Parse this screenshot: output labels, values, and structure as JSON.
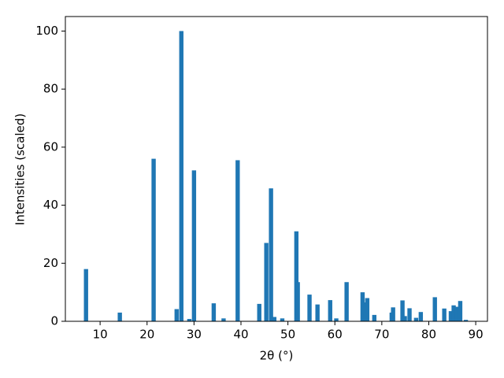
{
  "chart_data": {
    "type": "bar",
    "xlabel": "2θ (°)",
    "ylabel": "Intensities (scaled)",
    "x": [
      7.0,
      14.2,
      21.4,
      26.3,
      27.3,
      29.0,
      30.0,
      34.2,
      36.3,
      39.3,
      43.9,
      45.4,
      46.4,
      47.1,
      48.8,
      51.8,
      52.1,
      54.6,
      56.3,
      59.0,
      60.3,
      62.5,
      65.9,
      66.5,
      66.9,
      68.4,
      72.1,
      72.4,
      74.4,
      74.9,
      75.9,
      77.3,
      78.3,
      81.3,
      83.3,
      84.7,
      85.3,
      86.0,
      86.7,
      87.9
    ],
    "values": [
      18,
      3,
      56,
      4.2,
      100,
      0.8,
      52,
      6.2,
      1,
      55.5,
      6,
      27,
      45.8,
      1.5,
      1,
      31,
      13.5,
      9.2,
      5.8,
      7.3,
      1,
      13.5,
      10,
      6.5,
      8,
      2.2,
      3,
      4.8,
      7.2,
      1.8,
      4.5,
      1.2,
      3.2,
      8.3,
      4.4,
      3.5,
      5.5,
      5,
      7,
      0.5
    ],
    "color": "#1f77b4",
    "xlim": [
      2.6,
      92.5
    ],
    "xticks": [
      10,
      20,
      30,
      40,
      50,
      60,
      70,
      80,
      90
    ],
    "ylim": [
      0,
      105
    ],
    "yticks": [
      0,
      20,
      40,
      60,
      80,
      100
    ]
  }
}
